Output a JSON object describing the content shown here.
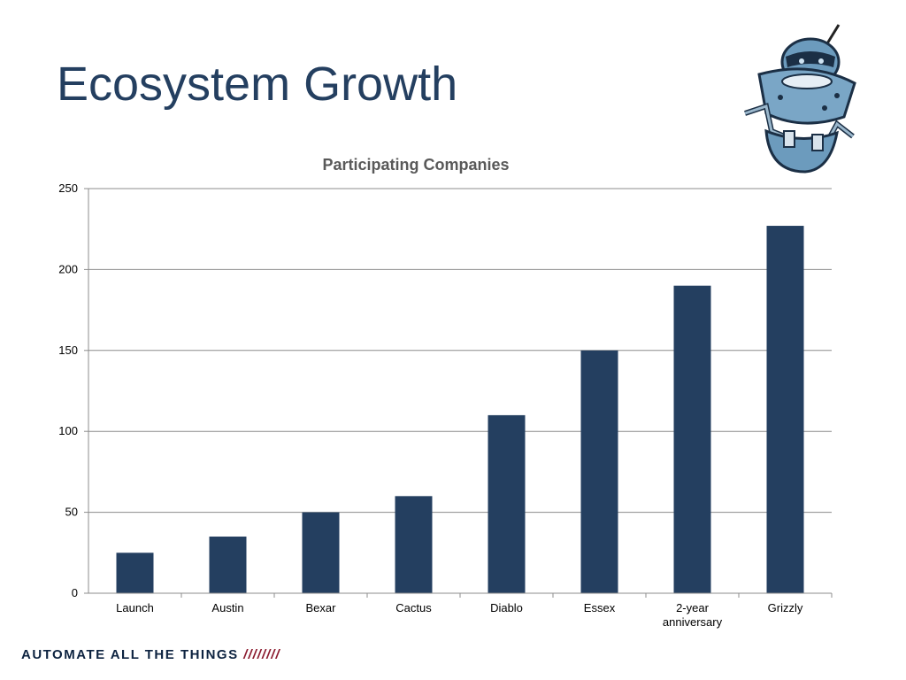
{
  "slide": {
    "title": "Ecosystem Growth",
    "footer_text": "AUTOMATE ALL THE THINGS",
    "footer_slashes": "////////",
    "mascot_icon": "robot-mascot-icon"
  },
  "colors": {
    "title": "#243f60",
    "bar": "#243f60",
    "footer": "#0d2340",
    "footer_accent": "#8b1a2e"
  },
  "chart_data": {
    "type": "bar",
    "title": "Participating Companies",
    "categories": [
      "Launch",
      "Austin",
      "Bexar",
      "Cactus",
      "Diablo",
      "Essex",
      "2-year anniversary",
      "Grizzly"
    ],
    "values": [
      25,
      35,
      50,
      60,
      110,
      150,
      190,
      227
    ],
    "yticks": [
      0,
      50,
      100,
      150,
      200,
      250
    ],
    "ylim": [
      0,
      250
    ],
    "xlabel": "",
    "ylabel": "",
    "grid": true,
    "legend": "none"
  }
}
